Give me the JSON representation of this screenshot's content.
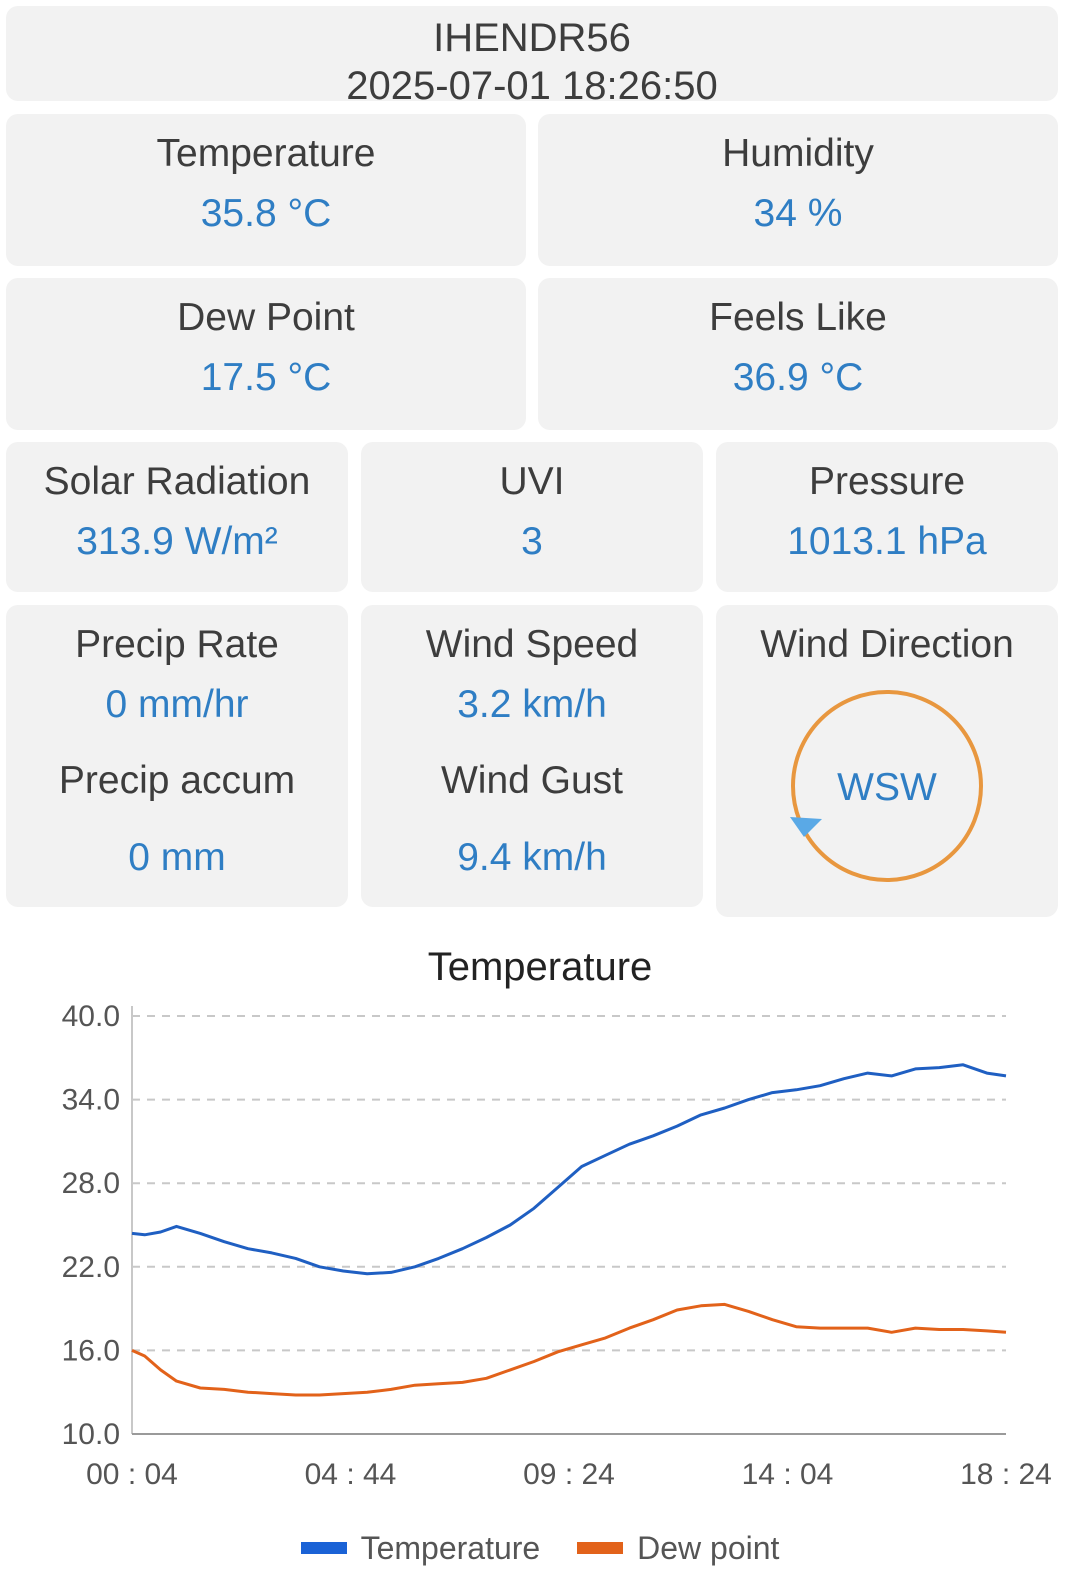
{
  "header": {
    "station_id": "IHENDR56",
    "timestamp": "2025-07-01 18:26:50"
  },
  "cards": {
    "temperature": {
      "label": "Temperature",
      "value": "35.8 °C"
    },
    "humidity": {
      "label": "Humidity",
      "value": "34 %"
    },
    "dew_point": {
      "label": "Dew Point",
      "value": "17.5 °C"
    },
    "feels_like": {
      "label": "Feels Like",
      "value": "36.9 °C"
    },
    "solar_radiation": {
      "label": "Solar Radiation",
      "value": "313.9 W/m²"
    },
    "uvi": {
      "label": "UVI",
      "value": "3"
    },
    "pressure": {
      "label": "Pressure",
      "value": "1013.1 hPa"
    },
    "precip_rate": {
      "label": "Precip Rate",
      "value": "0 mm/hr"
    },
    "precip_accum": {
      "label": "Precip accum",
      "value": "0 mm"
    },
    "wind_speed": {
      "label": "Wind Speed",
      "value": "3.2 km/h"
    },
    "wind_gust": {
      "label": "Wind Gust",
      "value": "9.4 km/h"
    },
    "wind_direction": {
      "label": "Wind Direction",
      "value": "WSW",
      "ring_color": "#e8973f",
      "arrow_color": "#5aa9e6"
    }
  },
  "chart_data": {
    "type": "line",
    "title": "Temperature",
    "xlabel": "",
    "ylabel": "",
    "x_ticks": [
      "00 : 04",
      "04 : 44",
      "09 : 24",
      "14 : 04",
      "18 : 24"
    ],
    "y_ticks": [
      "40.0",
      "34.0",
      "28.0",
      "22.0",
      "16.0",
      "10.0"
    ],
    "ylim": [
      10,
      40
    ],
    "grid": true,
    "legend": "bottom",
    "x_minutes": [
      4,
      20,
      40,
      60,
      90,
      120,
      150,
      180,
      210,
      240,
      270,
      300,
      330,
      360,
      390,
      420,
      450,
      480,
      510,
      540,
      570,
      600,
      630,
      660,
      690,
      720,
      750,
      780,
      810,
      840,
      870,
      900,
      930,
      960,
      990,
      1020,
      1050,
      1080,
      1104
    ],
    "series": [
      {
        "name": "Temperature",
        "color": "#1f5fc2",
        "values": [
          24.4,
          24.3,
          24.5,
          24.9,
          24.4,
          23.8,
          23.3,
          23.0,
          22.6,
          22.0,
          21.7,
          21.5,
          21.6,
          22.0,
          22.6,
          23.3,
          24.1,
          25.0,
          26.2,
          27.7,
          29.2,
          30.0,
          30.8,
          31.4,
          32.1,
          32.9,
          33.4,
          34.0,
          34.5,
          34.7,
          35.0,
          35.5,
          35.9,
          35.7,
          36.2,
          36.3,
          36.5,
          35.9,
          35.7
        ]
      },
      {
        "name": "Dew point",
        "color": "#e2621a",
        "values": [
          16.0,
          15.6,
          14.6,
          13.8,
          13.3,
          13.2,
          13.0,
          12.9,
          12.8,
          12.8,
          12.9,
          13.0,
          13.2,
          13.5,
          13.6,
          13.7,
          14.0,
          14.6,
          15.2,
          15.9,
          16.4,
          16.9,
          17.6,
          18.2,
          18.9,
          19.2,
          19.3,
          18.8,
          18.2,
          17.7,
          17.6,
          17.6,
          17.6,
          17.3,
          17.6,
          17.5,
          17.5,
          17.4,
          17.3
        ]
      }
    ]
  }
}
